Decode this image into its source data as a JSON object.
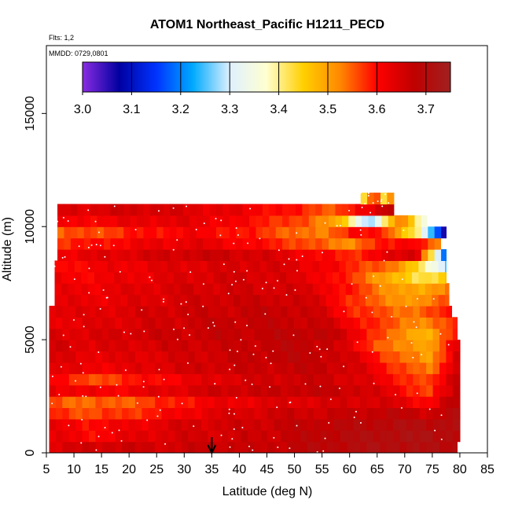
{
  "chart_data": {
    "type": "heatmap",
    "title": "ATOM1 Northeast_Pacific H1211_PECD",
    "flights_label": "Flts: 1,2",
    "date_label": "MMDD: 0729,0801",
    "xlabel": "Latitude (deg N)",
    "ylabel": "Altitude (m)",
    "xlim": [
      5,
      85
    ],
    "ylim": [
      0,
      18000
    ],
    "x_ticks": [
      5,
      10,
      15,
      20,
      25,
      30,
      35,
      40,
      45,
      50,
      55,
      60,
      65,
      70,
      75,
      80,
      85
    ],
    "y_ticks": [
      0,
      5000,
      10000,
      15000
    ],
    "colorbar": {
      "range": [
        3.0,
        3.75
      ],
      "ticks": [
        3.0,
        3.1,
        3.2,
        3.3,
        3.4,
        3.5,
        3.6,
        3.7
      ],
      "tick_labels": [
        "3.0",
        "3.1",
        "3.2",
        "3.3",
        "3.4",
        "3.5",
        "3.6",
        "3.7"
      ],
      "colors": [
        "#8a2be2",
        "#0000a0",
        "#0033ff",
        "#00aaff",
        "#dff0ff",
        "#ffffd0",
        "#ffd000",
        "#ff8800",
        "#ff0000",
        "#c00000",
        "#a02020"
      ]
    },
    "marker_latitude": 35,
    "altitude_bands": [
      {
        "alt": [
          0,
          500
        ],
        "lat": [
          5.5,
          79.5
        ],
        "values": [
          3.64,
          3.65,
          3.66,
          3.65,
          3.66,
          3.67,
          3.66,
          3.68,
          3.69,
          3.7,
          3.71,
          3.7,
          3.7
        ]
      },
      {
        "alt": [
          500,
          1000
        ],
        "lat": [
          5.5,
          80.0
        ],
        "values": [
          3.63,
          3.6,
          3.62,
          3.64,
          3.65,
          3.65,
          3.66,
          3.67,
          3.69,
          3.7,
          3.71,
          3.71,
          3.7
        ]
      },
      {
        "alt": [
          1000,
          1500
        ],
        "lat": [
          5.5,
          80.0
        ],
        "values": [
          3.62,
          3.6,
          3.61,
          3.63,
          3.65,
          3.65,
          3.66,
          3.67,
          3.68,
          3.69,
          3.7,
          3.7,
          3.71
        ]
      },
      {
        "alt": [
          1500,
          2000
        ],
        "lat": [
          5.5,
          80.0
        ],
        "values": [
          3.58,
          3.56,
          3.57,
          3.59,
          3.62,
          3.64,
          3.65,
          3.66,
          3.66,
          3.67,
          3.68,
          3.66,
          3.7
        ]
      },
      {
        "alt": [
          2000,
          2500
        ],
        "lat": [
          5.5,
          80.0
        ],
        "values": [
          3.56,
          3.54,
          3.55,
          3.57,
          3.6,
          3.62,
          3.63,
          3.64,
          3.64,
          3.65,
          3.64,
          3.6,
          3.71
        ]
      },
      {
        "alt": [
          2500,
          3000
        ],
        "lat": [
          5.5,
          80.0
        ],
        "values": [
          3.63,
          3.61,
          3.61,
          3.63,
          3.64,
          3.66,
          3.66,
          3.67,
          3.67,
          3.66,
          3.62,
          3.56,
          3.7
        ]
      },
      {
        "alt": [
          3000,
          3500
        ],
        "lat": [
          5.5,
          80.0
        ],
        "values": [
          3.62,
          3.55,
          3.58,
          3.6,
          3.62,
          3.64,
          3.65,
          3.66,
          3.66,
          3.64,
          3.6,
          3.55,
          3.71
        ]
      },
      {
        "alt": [
          3500,
          4000
        ],
        "lat": [
          5.5,
          80.0
        ],
        "values": [
          3.63,
          3.62,
          3.62,
          3.64,
          3.65,
          3.66,
          3.66,
          3.67,
          3.67,
          3.64,
          3.58,
          3.52,
          3.7
        ]
      },
      {
        "alt": [
          4000,
          4500
        ],
        "lat": [
          5.5,
          80.0
        ],
        "values": [
          3.64,
          3.63,
          3.63,
          3.64,
          3.65,
          3.66,
          3.67,
          3.68,
          3.67,
          3.63,
          3.55,
          3.5,
          3.68
        ]
      },
      {
        "alt": [
          4500,
          5000
        ],
        "lat": [
          5.5,
          80.0
        ],
        "values": [
          3.65,
          3.64,
          3.64,
          3.65,
          3.66,
          3.66,
          3.67,
          3.68,
          3.67,
          3.6,
          3.52,
          3.5,
          3.66
        ]
      },
      {
        "alt": [
          5000,
          5500
        ],
        "lat": [
          5.5,
          79.5
        ],
        "values": [
          3.64,
          3.64,
          3.65,
          3.66,
          3.66,
          3.67,
          3.67,
          3.68,
          3.68,
          3.62,
          3.53,
          3.48,
          3.6
        ]
      },
      {
        "alt": [
          5500,
          6000
        ],
        "lat": [
          5.5,
          79.5
        ],
        "values": [
          3.63,
          3.63,
          3.64,
          3.65,
          3.66,
          3.67,
          3.67,
          3.67,
          3.66,
          3.6,
          3.55,
          3.52,
          3.58
        ]
      },
      {
        "alt": [
          6000,
          6500
        ],
        "lat": [
          5.5,
          78.5
        ],
        "values": [
          3.64,
          3.63,
          3.64,
          3.65,
          3.66,
          3.66,
          3.67,
          3.67,
          3.65,
          3.58,
          3.55,
          3.54,
          3.6
        ]
      },
      {
        "alt": [
          6500,
          7000
        ],
        "lat": [
          6.5,
          78.0
        ],
        "values": [
          3.63,
          3.62,
          3.63,
          3.64,
          3.65,
          3.66,
          3.66,
          3.66,
          3.64,
          3.57,
          3.53,
          3.5,
          3.58
        ]
      },
      {
        "alt": [
          7000,
          7500
        ],
        "lat": [
          6.5,
          78.0
        ],
        "values": [
          3.62,
          3.62,
          3.63,
          3.64,
          3.65,
          3.65,
          3.65,
          3.65,
          3.63,
          3.58,
          3.52,
          3.48,
          3.55
        ]
      },
      {
        "alt": [
          7500,
          8000
        ],
        "lat": [
          6.5,
          77.5
        ],
        "values": [
          3.61,
          3.61,
          3.62,
          3.63,
          3.64,
          3.65,
          3.65,
          3.64,
          3.62,
          3.57,
          3.5,
          3.42,
          3.46
        ]
      },
      {
        "alt": [
          8000,
          8500
        ],
        "lat": [
          6.5,
          77.5
        ],
        "values": [
          3.6,
          3.61,
          3.62,
          3.63,
          3.64,
          3.64,
          3.65,
          3.64,
          3.62,
          3.58,
          3.55,
          3.45,
          3.25
        ]
      },
      {
        "alt": [
          8500,
          9000
        ],
        "lat": [
          7.0,
          77.5
        ],
        "values": [
          3.62,
          3.63,
          3.64,
          3.65,
          3.66,
          3.66,
          3.65,
          3.63,
          3.6,
          3.58,
          3.62,
          3.66,
          3.1
        ]
      },
      {
        "alt": [
          9000,
          9500
        ],
        "lat": [
          7.0,
          76.5
        ],
        "values": [
          3.58,
          3.59,
          3.61,
          3.62,
          3.63,
          3.62,
          3.6,
          3.58,
          3.55,
          3.52,
          3.58,
          3.62,
          3.5
        ]
      },
      {
        "alt": [
          9500,
          10000
        ],
        "lat": [
          7.0,
          77.5
        ],
        "values": [
          3.55,
          3.56,
          3.58,
          3.6,
          3.61,
          3.6,
          3.58,
          3.55,
          3.52,
          3.6,
          3.58,
          3.4,
          3.02
        ]
      },
      {
        "alt": [
          10000,
          10500
        ],
        "lat": [
          7.0,
          74.0
        ],
        "values": [
          3.6,
          3.61,
          3.62,
          3.63,
          3.63,
          3.62,
          3.6,
          3.58,
          3.55,
          3.5,
          3.25,
          3.55,
          3.3
        ]
      },
      {
        "alt": [
          10500,
          11000
        ],
        "lat": [
          7.0,
          68.0
        ],
        "values": [
          3.64,
          3.64,
          3.65,
          3.65,
          3.64,
          3.63,
          3.62,
          3.6,
          3.58,
          3.55,
          3.62,
          3.7
        ]
      },
      {
        "alt": [
          11000,
          11500
        ],
        "lat": [
          62.0,
          68.0
        ],
        "values": [
          3.45,
          3.6,
          3.4,
          3.65
        ]
      }
    ]
  }
}
